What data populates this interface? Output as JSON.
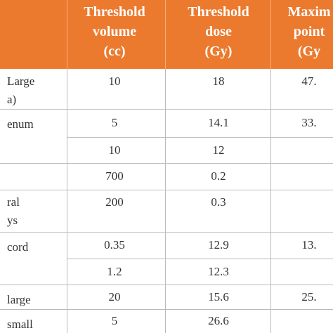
{
  "table": {
    "header": [
      [
        "Threshold",
        "volume",
        "(cc)"
      ],
      [
        "Threshold",
        "dose",
        "(Gy)"
      ],
      [
        "Maxim",
        "point",
        "(Gy"
      ]
    ],
    "rows": [
      {
        "organ": [
          "Large",
          "a)"
        ],
        "volume": "10",
        "dose": "18",
        "max": "47."
      },
      {
        "organ": [
          "enum"
        ],
        "volume": "5",
        "dose": "14.1",
        "max": "33."
      },
      {
        "volume": "10",
        "dose": "12"
      },
      {
        "volume": "700",
        "dose": "0.2"
      },
      {
        "organ": [
          "ral",
          "ys"
        ],
        "volume": "200",
        "dose": "0.3"
      },
      {
        "organ": [
          "cord"
        ],
        "volume": "0.35",
        "dose": "12.9",
        "max": "13."
      },
      {
        "volume": "1.2",
        "dose": "12.3"
      },
      {
        "organ": [
          "large"
        ],
        "volume": "20",
        "dose": "15.6",
        "max": "25."
      },
      {
        "organ": [
          "small"
        ],
        "volume": "5",
        "dose": "26.6"
      }
    ]
  }
}
